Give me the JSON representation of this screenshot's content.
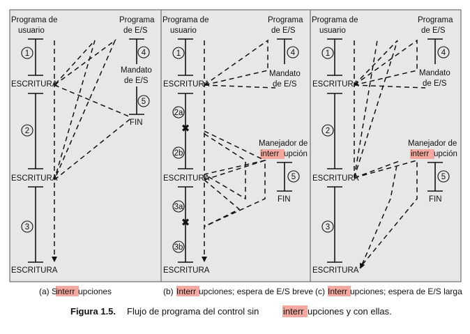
{
  "panel_a": {
    "user_program": [
      "Programa de",
      "usuario"
    ],
    "io_program": [
      "Programa",
      "de E/S"
    ],
    "command": [
      "Mandato",
      "de E/S"
    ],
    "end": "FIN",
    "write": "ESCRITURA",
    "steps": [
      "1",
      "2",
      "3",
      "4",
      "5"
    ],
    "caption_prefix": "(a) Sin ",
    "caption_highlight": "interr",
    "caption_suffix": "upciones"
  },
  "panel_b": {
    "user_program": [
      "Programa de",
      "usuario"
    ],
    "io_program": [
      "Programa",
      "de E/S"
    ],
    "command": [
      "Mandato",
      "de E/S"
    ],
    "handler": [
      "Manejador de",
      "interr",
      "upción"
    ],
    "end": "FIN",
    "write": "ESCRITURA",
    "steps": [
      "1",
      "2a",
      "2b",
      "3a",
      "3b",
      "4",
      "5"
    ],
    "caption_prefix": "(b) ",
    "caption_highlight": "Interr",
    "caption_suffix": "upciones; espera de E/S breve"
  },
  "panel_c": {
    "user_program": [
      "Programa de",
      "usuario"
    ],
    "io_program": [
      "Programa",
      "de E/S"
    ],
    "command": [
      "Mandato",
      "de E/S"
    ],
    "handler": [
      "Manejador de",
      "interr",
      "upción"
    ],
    "end": "FIN",
    "write": "ESCRITURA",
    "steps": [
      "1",
      "2",
      "3",
      "4",
      "5"
    ],
    "caption_prefix": "(c) ",
    "caption_highlight": "Interr",
    "caption_suffix": "upciones; espera de E/S larga"
  },
  "figure_caption": {
    "label": "Figura 1.5.",
    "text_prefix": "Flujo de programa del control sin ",
    "text_highlight": "interr",
    "text_suffix": "upciones y con ellas."
  },
  "colors": {
    "panel_bg": "#e7e7e7",
    "highlight": "#f4a9a0",
    "ink": "#111111"
  }
}
